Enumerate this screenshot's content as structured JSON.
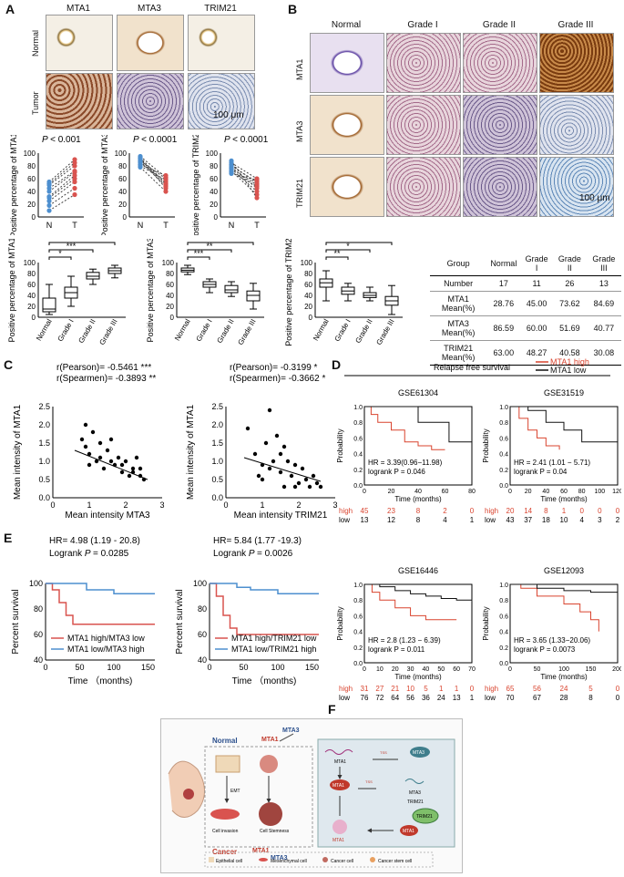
{
  "panels": {
    "A": "A",
    "B": "B",
    "C": "C",
    "D": "D",
    "E": "E",
    "F": "F"
  },
  "panelA": {
    "columns": [
      "MTA1",
      "MTA3",
      "TRIM21"
    ],
    "rows": [
      "Normal",
      "Tumor"
    ],
    "scalebar": "100 μm",
    "paired": [
      {
        "ylabel": "Positive percentage of MTA1",
        "pval_prefix": "P",
        "pval": "< 0.001",
        "x": [
          "N",
          "T"
        ],
        "yticks": [
          "0",
          "20",
          "40",
          "60",
          "80",
          "100"
        ]
      },
      {
        "ylabel": "Positive percentage of MTA3",
        "pval_prefix": "P",
        "pval": "< 0.0001",
        "x": [
          "N",
          "T"
        ],
        "yticks": [
          "0",
          "20",
          "40",
          "60",
          "80",
          "100"
        ]
      },
      {
        "ylabel": "Positive percentage of TRIM21",
        "pval_prefix": "P",
        "pval": "< 0.0001",
        "x": [
          "N",
          "T"
        ],
        "yticks": [
          "0",
          "20",
          "40",
          "60",
          "80",
          "100"
        ]
      }
    ]
  },
  "panelB": {
    "columns": [
      "Normal",
      "Grade I",
      "Grade II",
      "Grade III"
    ],
    "rows": [
      "MTA1",
      "MTA3",
      "TRIM21"
    ],
    "scalebar": "100 μm"
  },
  "boxplots": [
    {
      "ylabel": "Positive percentage of MTA1",
      "categories": [
        "Normal",
        "Grade I",
        "Grade II",
        "Grade III"
      ],
      "yticks": [
        "0",
        "20",
        "40",
        "60",
        "80",
        "100"
      ],
      "sig": [
        "*",
        "***",
        "***"
      ]
    },
    {
      "ylabel": "Positive percentage of MTA3",
      "categories": [
        "Normal",
        "Grade I",
        "Grade II",
        "Grade III"
      ],
      "yticks": [
        "0",
        "20",
        "40",
        "60",
        "80",
        "100"
      ],
      "sig": [
        "***",
        "**",
        "**"
      ]
    },
    {
      "ylabel": "Positive percentage of TRIM21",
      "categories": [
        "Normal",
        "Grade I",
        "Grade II",
        "Grade III"
      ],
      "yticks": [
        "0",
        "20",
        "40",
        "60",
        "80",
        "100"
      ],
      "sig": [
        "**",
        "*",
        "*"
      ]
    }
  ],
  "table": {
    "header": [
      "Group",
      "Normal",
      "Grade I",
      "Grade II",
      "Grade III"
    ],
    "rows": [
      [
        "Number",
        "17",
        "11",
        "26",
        "13"
      ],
      [
        "MTA1 Mean(%)",
        "28.76",
        "45.00",
        "73.62",
        "84.69"
      ],
      [
        "MTA3 Mean(%)",
        "86.59",
        "60.00",
        "51.69",
        "40.77"
      ],
      [
        "TRIM21 Mean(%)",
        "63.00",
        "48.27",
        "40.58",
        "30.08"
      ]
    ]
  },
  "panelC": [
    {
      "r1": "r(Pearson)= -0.5461 ***",
      "r2": "r(Spearmen)= -0.3893 **",
      "ylabel": "Mean intensity of MTA1",
      "xlabel": "Mean intensity MTA3",
      "xticks": [
        "0",
        "1",
        "2",
        "3"
      ],
      "yticks": [
        "0.0",
        "0.5",
        "1.0",
        "1.5",
        "2.0",
        "2.5"
      ]
    },
    {
      "r1": "r(Pearson)= -0.3199 *",
      "r2": "r(Spearmen)= -0.3662 *",
      "ylabel": "Mean intensity of MTA1",
      "xlabel": "Mean intensity TRIM21",
      "xticks": [
        "0",
        "1",
        "2",
        "3"
      ],
      "yticks": [
        "0.0",
        "0.5",
        "1.0",
        "1.5",
        "2.0",
        "2.5"
      ]
    }
  ],
  "panelD": {
    "title": "Relapse free survival",
    "legend": [
      {
        "label": "MTA1 high",
        "color": "#d9442f"
      },
      {
        "label": "MTA1 low",
        "color": "#111111"
      }
    ],
    "plots": [
      {
        "name": "GSE61304",
        "hr": "HR = 3.39(0.96−11.98)",
        "lr": "logrank P = 0.046",
        "xticks": [
          "0",
          "20",
          "40",
          "60",
          "80"
        ],
        "xlabel": "Time (months)",
        "ylabel": "Probability",
        "high": [
          "45",
          "23",
          "8",
          "2",
          "0"
        ],
        "low": [
          "13",
          "12",
          "8",
          "4",
          "1"
        ]
      },
      {
        "name": "GSE31519",
        "hr": "HR = 2.41 (1.01 − 5.71)",
        "lr": "logrank P = 0.04",
        "xticks": [
          "0",
          "20",
          "40",
          "60",
          "80",
          "100",
          "120"
        ],
        "xlabel": "Time (months)",
        "ylabel": "Probability",
        "high": [
          "20",
          "14",
          "8",
          "1",
          "0",
          "0",
          "0"
        ],
        "low": [
          "43",
          "37",
          "18",
          "10",
          "4",
          "3",
          "2"
        ]
      },
      {
        "name": "GSE16446",
        "hr": "HR = 2.8 (1.23 − 6.39)",
        "lr": "logrank P = 0.011",
        "xticks": [
          "0",
          "10",
          "20",
          "30",
          "40",
          "50",
          "60",
          "70"
        ],
        "xlabel": "Time (months)",
        "ylabel": "Probability",
        "high": [
          "31",
          "27",
          "21",
          "10",
          "5",
          "1",
          "1",
          "0"
        ],
        "low": [
          "76",
          "72",
          "64",
          "56",
          "36",
          "24",
          "13",
          "1"
        ]
      },
      {
        "name": "GSE12093",
        "hr": "HR = 3.65 (1.33−20.06)",
        "lr": "logrank P = 0.0073",
        "xticks": [
          "0",
          "50",
          "100",
          "150",
          "200"
        ],
        "xlabel": "Time (months)",
        "ylabel": "Probability",
        "high": [
          "65",
          "56",
          "24",
          "5",
          "0"
        ],
        "low": [
          "70",
          "67",
          "28",
          "8",
          "0"
        ]
      }
    ],
    "yticks": [
      "0.0",
      "0.2",
      "0.4",
      "0.6",
      "0.8",
      "1.0"
    ],
    "row_high": "high",
    "row_low": "low"
  },
  "panelE": [
    {
      "hr": "HR= 4.98 (1.19 - 20.8)",
      "lr_prefix": "Logrank",
      "lr_p": "P",
      "lr_val": "= 0.0285",
      "leg1": "MTA1 high/MTA3 low",
      "leg2": "MTA1 low/MTA3 high",
      "ylabel": "Percent survival",
      "xlabel": "Time （months)",
      "xticks": [
        "0",
        "50",
        "100",
        "150"
      ],
      "yticks": [
        "40",
        "60",
        "80",
        "100"
      ]
    },
    {
      "hr": "HR= 5.84 (1.77 -19.3)",
      "lr_prefix": "Logrank",
      "lr_p": "P",
      "lr_val": "= 0.0026",
      "leg1": "MTA1 high/TRIM21 low",
      "leg2": "MTA1 low/TRIM21 high",
      "ylabel": "Percent survival",
      "xlabel": "Time （months)",
      "xticks": [
        "0",
        "50",
        "100",
        "150"
      ],
      "yticks": [
        "40",
        "60",
        "80",
        "100"
      ]
    }
  ],
  "panelF": {
    "normal": "Normal",
    "cancer": "Cancer",
    "mta1": "MTA1",
    "mta3": "MTA3",
    "trim21": "TRIM21",
    "emt": "EMT",
    "inv": "Cell invasion",
    "stem": "Cell Stemness",
    "tss": "TSS",
    "legend": [
      "Epithelial cell",
      "Mesenchymal cell",
      "Cancer cell",
      "Cancer stem cell"
    ]
  }
}
